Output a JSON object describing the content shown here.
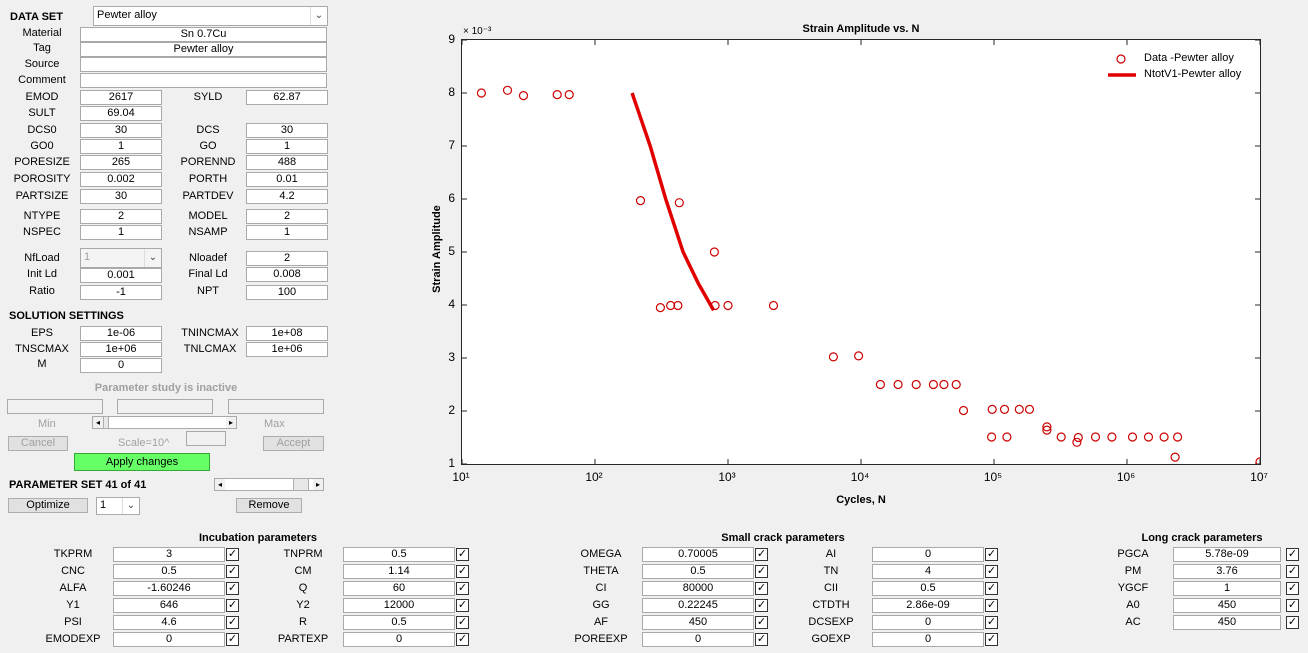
{
  "dataset": {
    "label": "DATA SET",
    "selected": "Pewter alloy"
  },
  "meta": [
    {
      "label": "Material",
      "value": "Sn 0.7Cu"
    },
    {
      "label": "Tag",
      "value": "Pewter alloy"
    },
    {
      "label": "Source",
      "value": ""
    },
    {
      "label": "Comment",
      "value": ""
    }
  ],
  "params": {
    "EMOD": {
      "label": "EMOD",
      "value": "2617"
    },
    "SYLD": {
      "label": "SYLD",
      "value": "62.87"
    },
    "SULT": {
      "label": "SULT",
      "value": "69.04"
    },
    "DCS0": {
      "label": "DCS0",
      "value": "30"
    },
    "DCS": {
      "label": "DCS",
      "value": "30"
    },
    "GO0": {
      "label": "GO0",
      "value": "1"
    },
    "GO": {
      "label": "GO",
      "value": "1"
    },
    "PORESIZE": {
      "label": "PORESIZE",
      "value": "265"
    },
    "PORENND": {
      "label": "PORENND",
      "value": "488"
    },
    "POROSITY": {
      "label": "POROSITY",
      "value": "0.002"
    },
    "PORTH": {
      "label": "PORTH",
      "value": "0.01"
    },
    "PARTSIZE": {
      "label": "PARTSIZE",
      "value": "30"
    },
    "PARTDEV": {
      "label": "PARTDEV",
      "value": "4.2"
    },
    "NTYPE": {
      "label": "NTYPE",
      "value": "2"
    },
    "MODEL": {
      "label": "MODEL",
      "value": "2"
    },
    "NSPEC": {
      "label": "NSPEC",
      "value": "1"
    },
    "NSAMP": {
      "label": "NSAMP",
      "value": "1"
    },
    "NfLoad": {
      "label": "NfLoad",
      "value": "1"
    },
    "Nloadef": {
      "label": "Nloadef",
      "value": "2"
    },
    "InitLd": {
      "label": "Init Ld",
      "value": "0.001"
    },
    "FinalLd": {
      "label": "Final Ld",
      "value": "0.008"
    },
    "Ratio": {
      "label": "Ratio",
      "value": "-1"
    },
    "NPT": {
      "label": "NPT",
      "value": "100"
    }
  },
  "solution": {
    "title": "SOLUTION SETTINGS",
    "EPS": {
      "label": "EPS",
      "value": "1e-06"
    },
    "TNINCMAX": {
      "label": "TNINCMAX",
      "value": "1e+08"
    },
    "TNSCMAX": {
      "label": "TNSCMAX",
      "value": "1e+06"
    },
    "TNLCMAX": {
      "label": "TNLCMAX",
      "value": "1e+06"
    },
    "M": {
      "label": "M",
      "value": "0"
    }
  },
  "study": {
    "status": "Parameter study is inactive",
    "min_label": "Min",
    "max_label": "Max",
    "cancel": "Cancel",
    "scale_label": "Scale=10^",
    "accept": "Accept",
    "apply": "Apply changes"
  },
  "paramset": {
    "label": "PARAMETER SET 41 of 41",
    "optimize": "Optimize",
    "select": "1",
    "remove": "Remove"
  },
  "chart_data": {
    "type": "scatter",
    "title": "Strain Amplitude vs. N",
    "xlabel": "Cycles, N",
    "ylabel": "Strain Amplitude",
    "exponent_label": "× 10⁻³",
    "xscale": "log",
    "xlim": [
      10,
      10000000
    ],
    "ylim": [
      1,
      9
    ],
    "x_ticks": [
      "10¹",
      "10²",
      "10³",
      "10⁴",
      "10⁵",
      "10⁶",
      "10⁷"
    ],
    "y_ticks": [
      "1",
      "2",
      "3",
      "4",
      "5",
      "6",
      "7",
      "8",
      "9"
    ],
    "legend_position": "top-right",
    "series": [
      {
        "name": "Data -Pewter alloy",
        "kind": "markers",
        "color": "#cc0000",
        "points": [
          [
            14,
            8.0
          ],
          [
            22,
            8.05
          ],
          [
            29,
            7.95
          ],
          [
            52,
            7.97
          ],
          [
            64,
            7.97
          ],
          [
            220,
            5.97
          ],
          [
            310,
            3.95
          ],
          [
            370,
            3.99
          ],
          [
            420,
            3.99
          ],
          [
            430,
            5.93
          ],
          [
            790,
            5.0
          ],
          [
            800,
            3.99
          ],
          [
            1000,
            3.99
          ],
          [
            2200,
            3.99
          ],
          [
            6200,
            3.02
          ],
          [
            9600,
            3.04
          ],
          [
            14000,
            2.5
          ],
          [
            19000,
            2.5
          ],
          [
            26000,
            2.5
          ],
          [
            35000,
            2.5
          ],
          [
            42000,
            2.5
          ],
          [
            52000,
            2.5
          ],
          [
            59000,
            2.01
          ],
          [
            96000,
            1.51
          ],
          [
            97000,
            2.03
          ],
          [
            120000,
            2.03
          ],
          [
            125000,
            1.51
          ],
          [
            155000,
            2.03
          ],
          [
            185000,
            2.03
          ],
          [
            250000,
            1.7
          ],
          [
            250000,
            1.64
          ],
          [
            320000,
            1.51
          ],
          [
            420000,
            1.41
          ],
          [
            430000,
            1.5
          ],
          [
            580000,
            1.51
          ],
          [
            770000,
            1.51
          ],
          [
            1100000,
            1.51
          ],
          [
            1450000,
            1.51
          ],
          [
            1900000,
            1.51
          ],
          [
            2400000,
            1.51
          ],
          [
            2300000,
            1.13
          ],
          [
            10000000,
            1.04
          ]
        ]
      },
      {
        "name": "NtotV1-Pewter alloy",
        "kind": "line",
        "color": "#e00000",
        "points": [
          [
            190,
            8.0
          ],
          [
            260,
            7.0
          ],
          [
            340,
            6.0
          ],
          [
            460,
            5.0
          ],
          [
            600,
            4.4
          ],
          [
            780,
            3.9
          ]
        ]
      }
    ]
  },
  "incubation": {
    "title": "Incubation parameters",
    "left": [
      {
        "label": "TKPRM",
        "value": "3"
      },
      {
        "label": "CNC",
        "value": "0.5"
      },
      {
        "label": "ALFA",
        "value": "-1.60246"
      },
      {
        "label": "Y1",
        "value": "646"
      },
      {
        "label": "PSI",
        "value": "4.6"
      },
      {
        "label": "EMODEXP",
        "value": "0"
      }
    ],
    "right": [
      {
        "label": "TNPRM",
        "value": "0.5"
      },
      {
        "label": "CM",
        "value": "1.14"
      },
      {
        "label": "Q",
        "value": "60"
      },
      {
        "label": "Y2",
        "value": "12000"
      },
      {
        "label": "R",
        "value": "0.5"
      },
      {
        "label": "PARTEXP",
        "value": "0"
      }
    ]
  },
  "small": {
    "title": "Small crack parameters",
    "left": [
      {
        "label": "OMEGA",
        "value": "0.70005"
      },
      {
        "label": "THETA",
        "value": "0.5"
      },
      {
        "label": "CI",
        "value": "80000"
      },
      {
        "label": "GG",
        "value": "0.22245"
      },
      {
        "label": "AF",
        "value": "450"
      },
      {
        "label": "POREEXP",
        "value": "0"
      }
    ],
    "right": [
      {
        "label": "AI",
        "value": "0"
      },
      {
        "label": "TN",
        "value": "4"
      },
      {
        "label": "CII",
        "value": "0.5"
      },
      {
        "label": "CTDTH",
        "value": "2.86e-09"
      },
      {
        "label": "DCSEXP",
        "value": "0"
      },
      {
        "label": "GOEXP",
        "value": "0"
      }
    ]
  },
  "long": {
    "title": "Long crack parameters",
    "items": [
      {
        "label": "PGCA",
        "value": "5.78e-09"
      },
      {
        "label": "PM",
        "value": "3.76"
      },
      {
        "label": "YGCF",
        "value": "1"
      },
      {
        "label": "A0",
        "value": "450"
      },
      {
        "label": "AC",
        "value": "450"
      }
    ]
  }
}
